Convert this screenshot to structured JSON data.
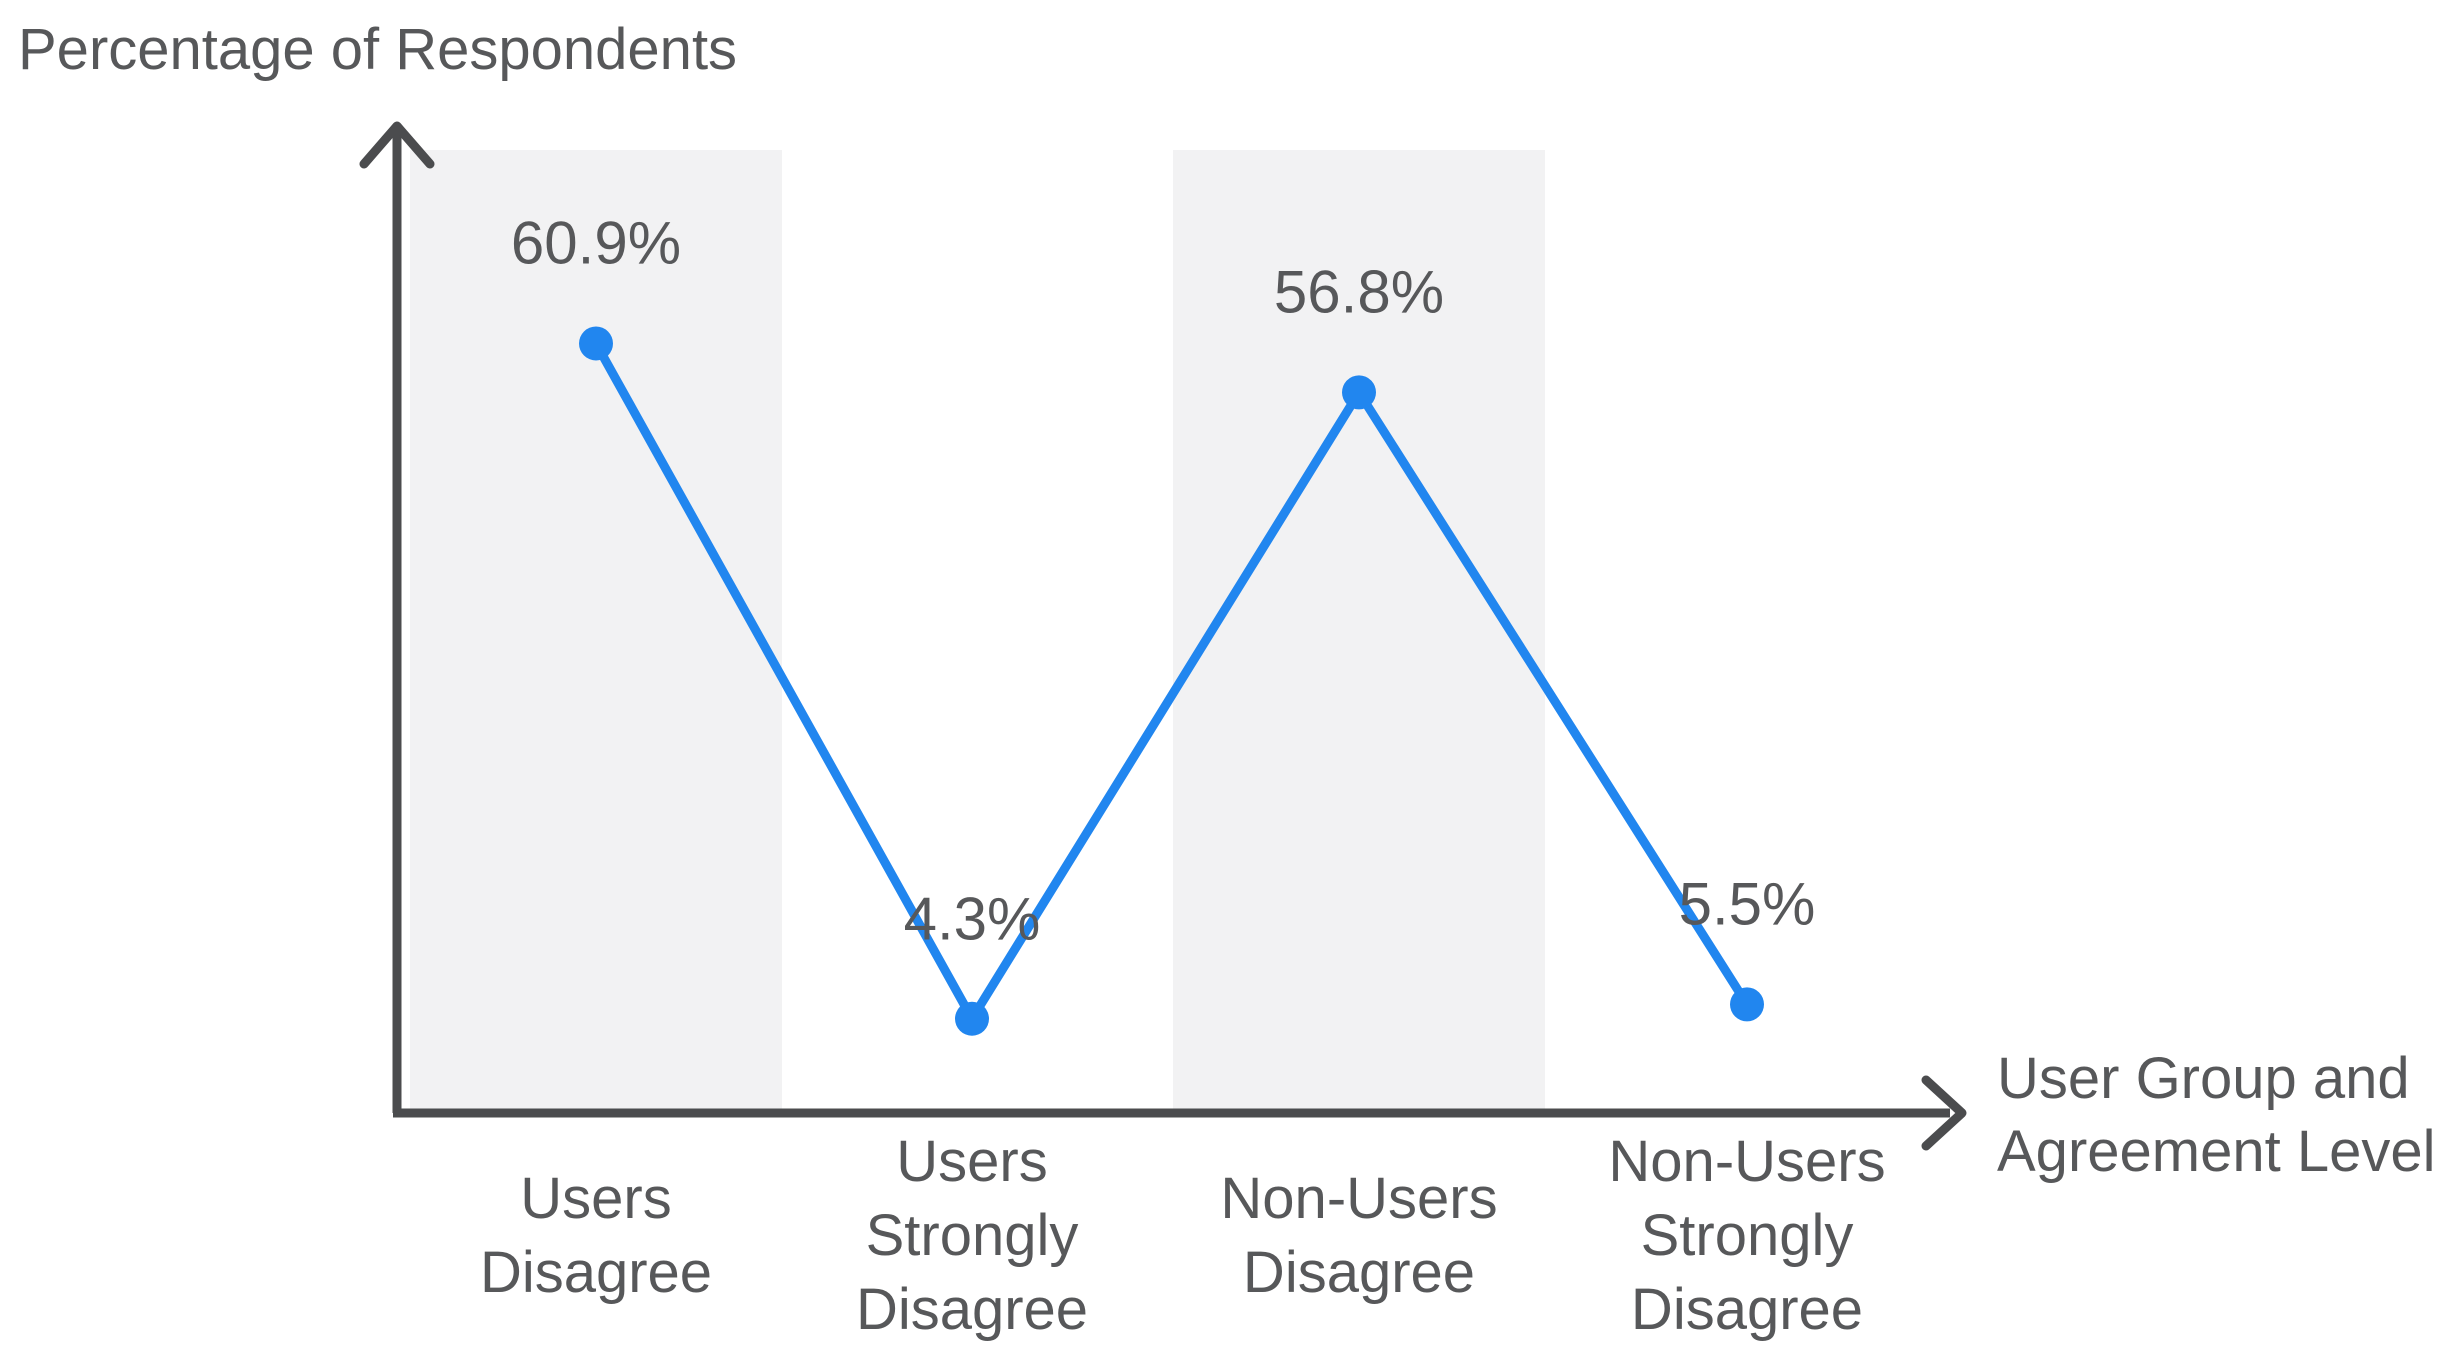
{
  "chart_data": {
    "type": "line",
    "ylabel": "Percentage of Respondents",
    "xlabel": "User Group and\nAgreement Level",
    "categories": [
      "Users\nDisagree",
      "Users\nStrongly\nDisagree",
      "Non-Users\nDisagree",
      "Non-Users\nStrongly\nDisagree"
    ],
    "values": [
      60.9,
      4.3,
      56.8,
      5.5
    ],
    "value_labels": [
      "60.9%",
      "4.3%",
      "56.8%",
      "5.5%"
    ],
    "shaded_category_indices": [
      0,
      2
    ],
    "ylim": [
      0,
      70
    ],
    "grid": false,
    "legend": false,
    "colors": {
      "line": "#2186ef",
      "point": "#2186ef",
      "band": "#f2f2f3",
      "axis": "#4b4c4e",
      "text": "#57585a",
      "background": "#ffffff"
    }
  }
}
